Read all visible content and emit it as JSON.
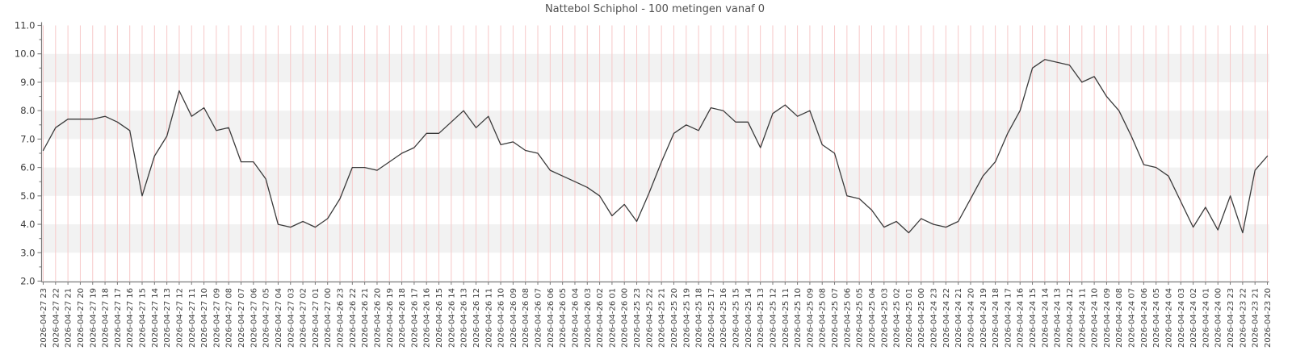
{
  "chart_data": {
    "type": "line",
    "title": "Nattebol Schiphol - 100 metingen vanaf 0",
    "xlabel": "",
    "ylabel": "",
    "ylim": [
      2.0,
      11.0
    ],
    "ytick_step": 1.0,
    "ytick_labels": [
      "2.0",
      "3.0",
      "4.0",
      "5.0",
      "6.0",
      "7.0",
      "8.0",
      "9.0",
      "10.0",
      "11.0"
    ],
    "grid": "vertical-per-point-and-horizontal-bands",
    "legend": "none",
    "x": [
      "2026-04-27 23",
      "2026-04-27 22",
      "2026-04-27 21",
      "2026-04-27 20",
      "2026-04-27 19",
      "2026-04-27 18",
      "2026-04-27 17",
      "2026-04-27 16",
      "2026-04-27 15",
      "2026-04-27 14",
      "2026-04-27 13",
      "2026-04-27 12",
      "2026-04-27 11",
      "2026-04-27 10",
      "2026-04-27 09",
      "2026-04-27 08",
      "2026-04-27 07",
      "2026-04-27 06",
      "2026-04-27 05",
      "2026-04-27 04",
      "2026-04-27 03",
      "2026-04-27 02",
      "2026-04-27 01",
      "2026-04-27 00",
      "2026-04-26 23",
      "2026-04-26 22",
      "2026-04-26 21",
      "2026-04-26 20",
      "2026-04-26 19",
      "2026-04-26 18",
      "2026-04-26 17",
      "2026-04-26 16",
      "2026-04-26 15",
      "2026-04-26 14",
      "2026-04-26 13",
      "2026-04-26 12",
      "2026-04-26 11",
      "2026-04-26 10",
      "2026-04-26 09",
      "2026-04-26 08",
      "2026-04-26 07",
      "2026-04-26 06",
      "2026-04-26 05",
      "2026-04-26 04",
      "2026-04-26 03",
      "2026-04-26 02",
      "2026-04-26 01",
      "2026-04-26 00",
      "2026-04-25 23",
      "2026-04-25 22",
      "2026-04-25 21",
      "2026-04-25 20",
      "2026-04-25 19",
      "2026-04-25 18",
      "2026-04-25 17",
      "2026-04-25 16",
      "2026-04-25 15",
      "2026-04-25 14",
      "2026-04-25 13",
      "2026-04-25 12",
      "2026-04-25 11",
      "2026-04-25 10",
      "2026-04-25 09",
      "2026-04-25 08",
      "2026-04-25 07",
      "2026-04-25 06",
      "2026-04-25 05",
      "2026-04-25 04",
      "2026-04-25 03",
      "2026-04-25 02",
      "2026-04-25 01",
      "2026-04-25 00",
      "2026-04-24 23",
      "2026-04-24 22",
      "2026-04-24 21",
      "2026-04-24 20",
      "2026-04-24 19",
      "2026-04-24 18",
      "2026-04-24 17",
      "2026-04-24 16",
      "2026-04-24 15",
      "2026-04-24 14",
      "2026-04-24 13",
      "2026-04-24 12",
      "2026-04-24 11",
      "2026-04-24 10",
      "2026-04-24 09",
      "2026-04-24 08",
      "2026-04-24 07",
      "2026-04-24 06",
      "2026-04-24 05",
      "2026-04-24 04",
      "2026-04-24 03",
      "2026-04-24 02",
      "2026-04-24 01",
      "2026-04-24 00",
      "2026-04-23 23",
      "2026-04-23 22",
      "2026-04-23 21",
      "2026-04-23 20"
    ],
    "values": [
      6.6,
      7.4,
      7.7,
      7.7,
      7.7,
      7.8,
      7.6,
      7.3,
      5.0,
      6.4,
      7.1,
      8.7,
      7.8,
      8.1,
      7.3,
      7.4,
      6.2,
      6.2,
      5.6,
      4.0,
      3.9,
      4.1,
      3.9,
      4.2,
      4.9,
      6.0,
      6.0,
      5.9,
      6.2,
      6.5,
      6.7,
      7.2,
      7.2,
      7.6,
      8.0,
      7.4,
      7.8,
      6.8,
      6.9,
      6.6,
      6.5,
      5.9,
      5.7,
      5.5,
      5.3,
      5.0,
      4.3,
      4.7,
      4.1,
      5.1,
      6.2,
      7.2,
      7.5,
      7.3,
      8.1,
      8.0,
      7.6,
      7.6,
      6.7,
      7.9,
      8.2,
      7.8,
      8.0,
      6.8,
      6.5,
      5.0,
      4.9,
      4.5,
      3.9,
      4.1,
      3.7,
      4.2,
      4.0,
      3.9,
      4.1,
      4.9,
      5.7,
      6.2,
      7.2,
      8.0,
      9.5,
      9.8,
      9.7,
      9.6,
      9.0,
      9.2,
      8.5,
      8.0,
      7.1,
      6.1,
      6.0,
      5.7,
      4.8,
      3.9,
      4.6,
      3.8,
      5.0,
      3.7,
      5.9,
      6.4
    ],
    "style": {
      "line_color": "#3a3a3a",
      "vgrid_color": "#f7c8c8",
      "band_color": "#f2f2f2",
      "background_color": "#ffffff",
      "spine_color": "#7a7a7a",
      "tick_label_color": "#3c3c3c",
      "title_color": "#4f4f4f"
    }
  }
}
